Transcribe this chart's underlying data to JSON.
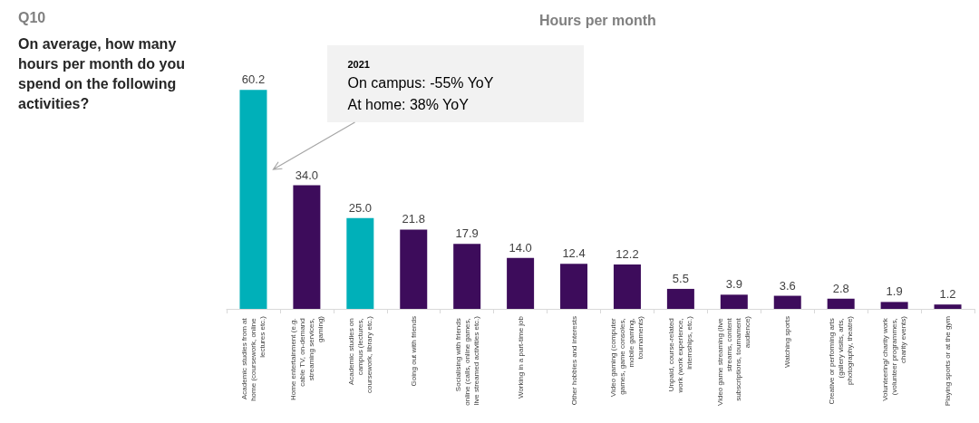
{
  "chart_data": {
    "type": "bar",
    "title": "Q10",
    "subtitle": "On average, how many hours per month do you spend on the following activities?",
    "ylabel": "Hours per month",
    "categories": [
      "Academic studies from at home (coursework, online lectures etc.)",
      "Home entertainment (e.g. cable TV, on-demand streaming services, gaming)",
      "Academic studies on campus (lectures, coursework, library etc.)",
      "Going out with friends",
      "Socialising with friends online (calls, online games, live streamed activities etc.)",
      "Working in a part-time job",
      "Other hobbies and interests",
      "Video gaming (computer games, game consoles, mobile gaming, tournaments)",
      "Unpaid, course-related work (work experience, internships, etc.)",
      "Video game streaming (live streams, content subscriptions, tournament audience)",
      "Watching sports",
      "Creative or performing arts (gallery visits, arts, photography, theatre)",
      "Volunteering/ charity work (volunteer programmes, charity events)",
      "Playing sports or at the gym"
    ],
    "values": [
      60.2,
      34.0,
      25.0,
      21.8,
      17.9,
      14.0,
      12.4,
      12.2,
      5.5,
      3.9,
      3.6,
      2.8,
      1.9,
      1.2
    ],
    "value_labels": [
      "60.2",
      "34.0",
      "25.0",
      "21.8",
      "17.9",
      "14.0",
      "12.4",
      "12.2",
      "5.5",
      "3.9",
      "3.6",
      "2.8",
      "1.9",
      "1.2"
    ],
    "colors": [
      "#00b0b9",
      "#3d0c5b",
      "#00b0b9",
      "#3d0c5b",
      "#3d0c5b",
      "#3d0c5b",
      "#3d0c5b",
      "#3d0c5b",
      "#3d0c5b",
      "#3d0c5b",
      "#3d0c5b",
      "#3d0c5b",
      "#3d0c5b",
      "#3d0c5b"
    ],
    "annotations": [
      "2021\nOn campus: -55% YoY\nAt home: 38% YoY"
    ],
    "grid": false
  }
}
